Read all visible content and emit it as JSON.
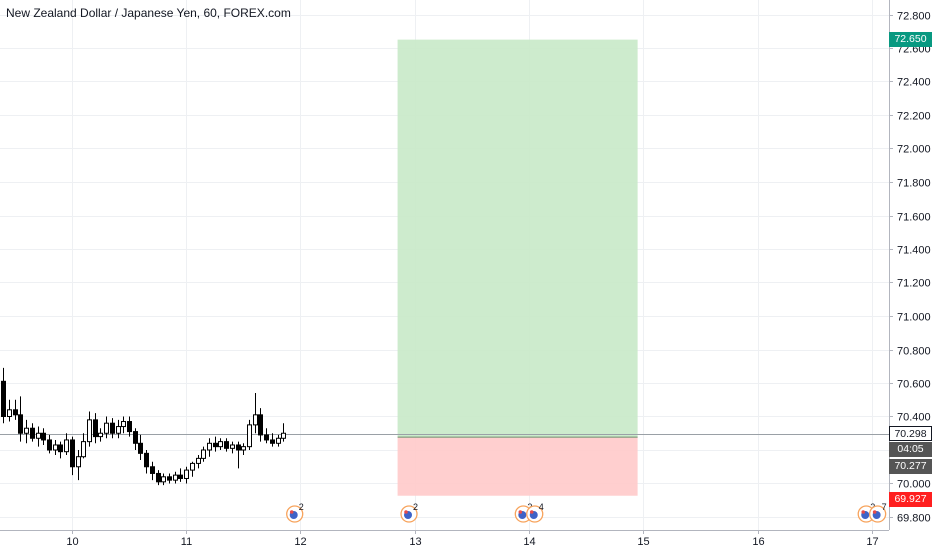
{
  "title": "New Zealand Dollar / Japanese Yen, 60, FOREX.com",
  "price_tags": {
    "target": {
      "label": "72.650",
      "color": "#089981"
    },
    "current": {
      "label": "70.298",
      "color": "#131722",
      "bg": "#ffffff"
    },
    "countdown": {
      "label": "04:05",
      "color": "#555555"
    },
    "entry": {
      "label": "70.277",
      "color": "#555555"
    },
    "stop": {
      "label": "69.927",
      "color": "#ff1f1f"
    }
  },
  "colors": {
    "profit_zone": "#c8e9c8",
    "loss_zone": "#ffcaca",
    "up_candle": "#ffffff",
    "down_candle": "#000000",
    "grid": "#eef0f3"
  },
  "events": [
    {
      "x": 11.95,
      "count": "2"
    },
    {
      "x": 12.95,
      "count": "2"
    },
    {
      "x": 13.95,
      "count": "2"
    },
    {
      "x": 14.05,
      "count": "4"
    },
    {
      "x": 16.95,
      "count": "2"
    },
    {
      "x": 17.05,
      "count": "7"
    }
  ],
  "chart_data": {
    "type": "candlestick",
    "title": "New Zealand Dollar / Japanese Yen, 60, FOREX.com",
    "x_ticks": [
      "10",
      "11",
      "12",
      "13",
      "14",
      "15",
      "16",
      "17"
    ],
    "x_tick_values": [
      10,
      11,
      12,
      13,
      14,
      15,
      16,
      17
    ],
    "xlim": [
      9.4,
      17.1
    ],
    "y_ticks": [
      "69.800",
      "70.000",
      "70.200",
      "70.400",
      "70.600",
      "70.800",
      "71.000",
      "71.200",
      "71.400",
      "71.600",
      "71.800",
      "72.000",
      "72.200",
      "72.400",
      "72.600",
      "72.800"
    ],
    "ylim": [
      69.72,
      72.87
    ],
    "grid": true,
    "current_price": 70.298,
    "position": {
      "type": "long",
      "entry": 70.277,
      "target": 72.65,
      "stop": 69.927,
      "x_start": 12.85,
      "x_end": 14.95
    },
    "candles": [
      {
        "x": 9.4,
        "o": 70.61,
        "h": 70.69,
        "l": 70.36,
        "c": 70.4
      },
      {
        "x": 9.45,
        "o": 70.4,
        "h": 70.5,
        "l": 70.37,
        "c": 70.44
      },
      {
        "x": 9.5,
        "o": 70.44,
        "h": 70.5,
        "l": 70.38,
        "c": 70.41
      },
      {
        "x": 9.55,
        "o": 70.41,
        "h": 70.52,
        "l": 70.25,
        "c": 70.3
      },
      {
        "x": 9.6,
        "o": 70.3,
        "h": 70.38,
        "l": 70.24,
        "c": 70.33
      },
      {
        "x": 9.65,
        "o": 70.33,
        "h": 70.36,
        "l": 70.25,
        "c": 70.27
      },
      {
        "x": 9.7,
        "o": 70.27,
        "h": 70.34,
        "l": 70.22,
        "c": 70.3
      },
      {
        "x": 9.75,
        "o": 70.3,
        "h": 70.33,
        "l": 70.23,
        "c": 70.26
      },
      {
        "x": 9.8,
        "o": 70.26,
        "h": 70.29,
        "l": 70.18,
        "c": 70.2
      },
      {
        "x": 9.85,
        "o": 70.2,
        "h": 70.26,
        "l": 70.17,
        "c": 70.23
      },
      {
        "x": 9.9,
        "o": 70.23,
        "h": 70.25,
        "l": 70.15,
        "c": 70.19
      },
      {
        "x": 9.95,
        "o": 70.19,
        "h": 70.3,
        "l": 70.17,
        "c": 70.26
      },
      {
        "x": 10.0,
        "o": 70.26,
        "h": 70.28,
        "l": 70.05,
        "c": 70.1
      },
      {
        "x": 10.05,
        "o": 70.1,
        "h": 70.2,
        "l": 70.02,
        "c": 70.16
      },
      {
        "x": 10.1,
        "o": 70.16,
        "h": 70.3,
        "l": 70.15,
        "c": 70.25
      },
      {
        "x": 10.15,
        "o": 70.25,
        "h": 70.43,
        "l": 70.22,
        "c": 70.38
      },
      {
        "x": 10.2,
        "o": 70.38,
        "h": 70.42,
        "l": 70.24,
        "c": 70.28
      },
      {
        "x": 10.25,
        "o": 70.28,
        "h": 70.33,
        "l": 70.25,
        "c": 70.3
      },
      {
        "x": 10.3,
        "o": 70.3,
        "h": 70.4,
        "l": 70.27,
        "c": 70.36
      },
      {
        "x": 10.35,
        "o": 70.36,
        "h": 70.39,
        "l": 70.27,
        "c": 70.3
      },
      {
        "x": 10.4,
        "o": 70.3,
        "h": 70.38,
        "l": 70.27,
        "c": 70.34
      },
      {
        "x": 10.45,
        "o": 70.34,
        "h": 70.4,
        "l": 70.3,
        "c": 70.37
      },
      {
        "x": 10.5,
        "o": 70.37,
        "h": 70.4,
        "l": 70.28,
        "c": 70.31
      },
      {
        "x": 10.55,
        "o": 70.31,
        "h": 70.33,
        "l": 70.2,
        "c": 70.24
      },
      {
        "x": 10.6,
        "o": 70.24,
        "h": 70.29,
        "l": 70.14,
        "c": 70.18
      },
      {
        "x": 10.65,
        "o": 70.18,
        "h": 70.2,
        "l": 70.06,
        "c": 70.1
      },
      {
        "x": 10.7,
        "o": 70.1,
        "h": 70.13,
        "l": 70.02,
        "c": 70.06
      },
      {
        "x": 10.75,
        "o": 70.06,
        "h": 70.08,
        "l": 69.99,
        "c": 70.01
      },
      {
        "x": 10.8,
        "o": 70.01,
        "h": 70.06,
        "l": 69.99,
        "c": 70.04
      },
      {
        "x": 10.85,
        "o": 70.04,
        "h": 70.06,
        "l": 70.0,
        "c": 70.02
      },
      {
        "x": 10.9,
        "o": 70.02,
        "h": 70.07,
        "l": 70.0,
        "c": 70.05
      },
      {
        "x": 10.95,
        "o": 70.05,
        "h": 70.09,
        "l": 70.01,
        "c": 70.03
      },
      {
        "x": 11.0,
        "o": 70.03,
        "h": 70.1,
        "l": 70.0,
        "c": 70.08
      },
      {
        "x": 11.05,
        "o": 70.08,
        "h": 70.13,
        "l": 70.04,
        "c": 70.12
      },
      {
        "x": 11.1,
        "o": 70.12,
        "h": 70.17,
        "l": 70.09,
        "c": 70.15
      },
      {
        "x": 11.15,
        "o": 70.15,
        "h": 70.22,
        "l": 70.13,
        "c": 70.2
      },
      {
        "x": 11.2,
        "o": 70.2,
        "h": 70.27,
        "l": 70.16,
        "c": 70.24
      },
      {
        "x": 11.25,
        "o": 70.24,
        "h": 70.28,
        "l": 70.19,
        "c": 70.22
      },
      {
        "x": 11.3,
        "o": 70.22,
        "h": 70.27,
        "l": 70.2,
        "c": 70.25
      },
      {
        "x": 11.35,
        "o": 70.25,
        "h": 70.27,
        "l": 70.19,
        "c": 70.21
      },
      {
        "x": 11.4,
        "o": 70.21,
        "h": 70.25,
        "l": 70.18,
        "c": 70.23
      },
      {
        "x": 11.45,
        "o": 70.23,
        "h": 70.25,
        "l": 70.09,
        "c": 70.2
      },
      {
        "x": 11.5,
        "o": 70.2,
        "h": 70.24,
        "l": 70.17,
        "c": 70.22
      },
      {
        "x": 11.55,
        "o": 70.22,
        "h": 70.38,
        "l": 70.2,
        "c": 70.35
      },
      {
        "x": 11.6,
        "o": 70.35,
        "h": 70.54,
        "l": 70.3,
        "c": 70.41
      },
      {
        "x": 11.65,
        "o": 70.41,
        "h": 70.45,
        "l": 70.25,
        "c": 70.29
      },
      {
        "x": 11.7,
        "o": 70.29,
        "h": 70.33,
        "l": 70.24,
        "c": 70.26
      },
      {
        "x": 11.75,
        "o": 70.26,
        "h": 70.3,
        "l": 70.22,
        "c": 70.24
      },
      {
        "x": 11.8,
        "o": 70.24,
        "h": 70.29,
        "l": 70.22,
        "c": 70.27
      },
      {
        "x": 11.85,
        "o": 70.27,
        "h": 70.36,
        "l": 70.25,
        "c": 70.3
      }
    ]
  }
}
